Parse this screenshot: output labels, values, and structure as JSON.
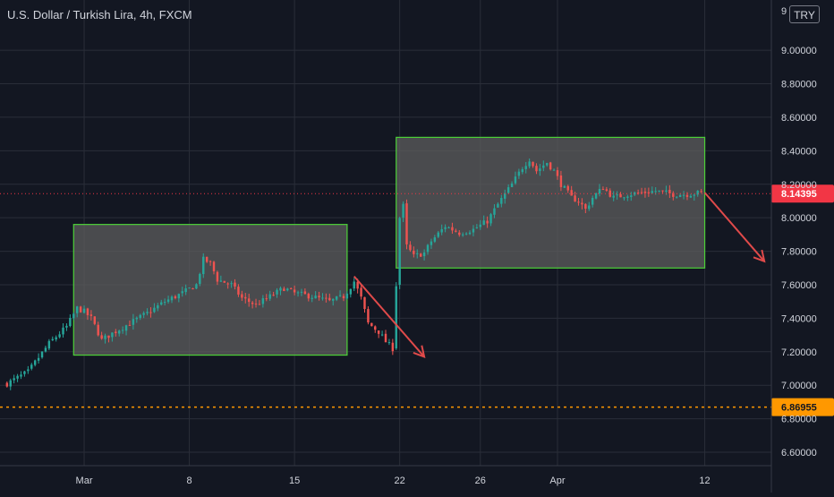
{
  "title": "U.S. Dollar / Turkish Lira, 4h, FXCM",
  "currency": "TRY",
  "colors": {
    "background": "#131722",
    "grid": "#2a2e39",
    "up": "#26a69a",
    "down": "#ef5350",
    "box_border": "#4cd137",
    "box_fill": "#5d5d5d",
    "arrow": "#e04a4a",
    "current_price_badge": "#f23645",
    "orange_level": "#ff9800",
    "axis_text": "#d1d4dc"
  },
  "chart_data": {
    "type": "candlestick",
    "symbol": "USD/TRY",
    "timeframe": "4h",
    "source": "FXCM",
    "y_axis": {
      "position": "right",
      "ticks": [
        "6.60000",
        "6.80000",
        "7.00000",
        "7.20000",
        "7.40000",
        "7.60000",
        "7.80000",
        "8.00000",
        "8.20000",
        "8.40000",
        "8.60000",
        "8.80000",
        "9.00000"
      ],
      "top_partial_label": "9",
      "ylim": [
        6.52,
        9.3
      ]
    },
    "x_axis": {
      "ticks": [
        {
          "label": "Mar",
          "index": 22
        },
        {
          "label": "8",
          "index": 52
        },
        {
          "label": "15",
          "index": 82
        },
        {
          "label": "22",
          "index": 112
        },
        {
          "label": "26",
          "index": 135
        },
        {
          "label": "Apr",
          "index": 157
        },
        {
          "label": "12",
          "index": 199
        }
      ],
      "index_range": [
        -2,
        218
      ]
    },
    "price_levels": [
      {
        "label": "8.14395",
        "value": 8.14395,
        "style": "dotted",
        "color": "#f23645"
      },
      {
        "label": "6.86955",
        "value": 6.86955,
        "style": "dashed",
        "color": "#ff9800"
      }
    ],
    "boxes": [
      {
        "start_index": 19,
        "end_index": 97,
        "low": 7.18,
        "high": 7.96
      },
      {
        "start_index": 111,
        "end_index": 199,
        "low": 7.7,
        "high": 8.48
      }
    ],
    "arrows": [
      {
        "from_index": 99,
        "from_value": 7.65,
        "to_index": 119,
        "to_value": 7.17
      },
      {
        "from_index": 199,
        "from_value": 8.15,
        "to_index": 216,
        "to_value": 7.74
      }
    ],
    "close_path": [
      [
        0,
        7.01
      ],
      [
        6,
        7.08
      ],
      [
        12,
        7.25
      ],
      [
        17,
        7.35
      ],
      [
        20,
        7.46
      ],
      [
        22,
        7.44
      ],
      [
        24,
        7.4
      ],
      [
        27,
        7.27
      ],
      [
        30,
        7.31
      ],
      [
        35,
        7.37
      ],
      [
        40,
        7.43
      ],
      [
        45,
        7.5
      ],
      [
        50,
        7.55
      ],
      [
        54,
        7.6
      ],
      [
        56,
        7.75
      ],
      [
        58,
        7.73
      ],
      [
        60,
        7.63
      ],
      [
        64,
        7.6
      ],
      [
        67,
        7.52
      ],
      [
        71,
        7.48
      ],
      [
        75,
        7.53
      ],
      [
        79,
        7.58
      ],
      [
        82,
        7.55
      ],
      [
        87,
        7.53
      ],
      [
        92,
        7.5
      ],
      [
        96,
        7.53
      ],
      [
        99,
        7.62
      ],
      [
        101,
        7.52
      ],
      [
        103,
        7.37
      ],
      [
        106,
        7.32
      ],
      [
        108,
        7.26
      ],
      [
        110,
        7.22
      ],
      [
        111,
        7.6
      ],
      [
        112,
        8.0
      ],
      [
        113,
        8.07
      ],
      [
        114,
        7.83
      ],
      [
        116,
        7.77
      ],
      [
        119,
        7.79
      ],
      [
        121,
        7.86
      ],
      [
        125,
        7.95
      ],
      [
        129,
        7.91
      ],
      [
        133,
        7.93
      ],
      [
        137,
        7.98
      ],
      [
        140,
        8.08
      ],
      [
        144,
        8.2
      ],
      [
        147,
        8.3
      ],
      [
        149,
        8.35
      ],
      [
        151,
        8.28
      ],
      [
        154,
        8.33
      ],
      [
        156,
        8.28
      ],
      [
        158,
        8.2
      ],
      [
        161,
        8.12
      ],
      [
        163,
        8.1
      ],
      [
        165,
        8.05
      ],
      [
        167,
        8.12
      ],
      [
        170,
        8.18
      ],
      [
        173,
        8.12
      ],
      [
        177,
        8.14
      ],
      [
        181,
        8.15
      ],
      [
        185,
        8.16
      ],
      [
        190,
        8.14
      ],
      [
        194,
        8.14
      ],
      [
        198,
        8.15
      ]
    ]
  }
}
